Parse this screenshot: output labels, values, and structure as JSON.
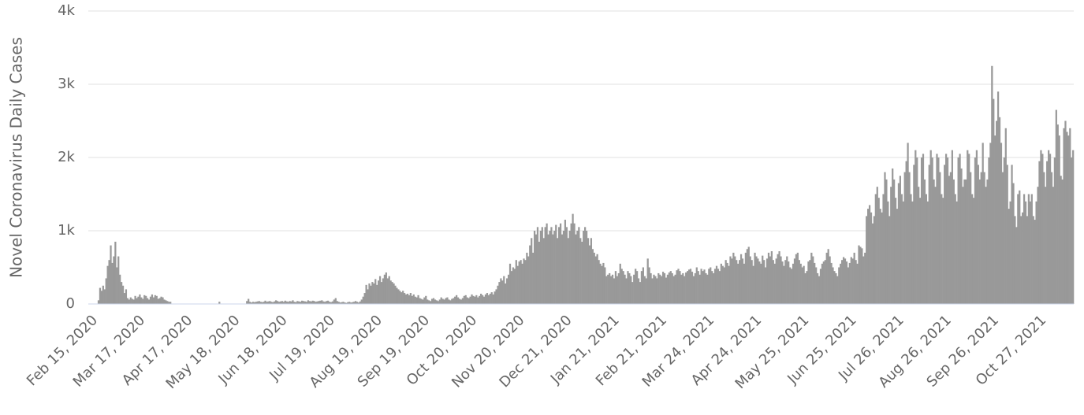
{
  "chart_data": {
    "type": "bar",
    "y_axis_label": "Novel Coronavirus Daily Cases",
    "color": "#999999",
    "grid": true,
    "ylim": [
      0,
      4000
    ],
    "yticks": [
      0,
      {
        "value": 1000,
        "label": "1k"
      },
      {
        "value": 2000,
        "label": "2k"
      },
      {
        "value": 3000,
        "label": "3k"
      },
      {
        "value": 4000,
        "label": "4k"
      }
    ],
    "categories": [
      "Feb 15, 2020",
      null,
      null,
      null,
      null,
      null,
      null,
      null,
      null,
      null,
      null,
      null,
      null,
      null,
      null,
      null,
      null,
      null,
      null,
      null,
      null,
      null,
      null,
      null,
      null,
      null,
      null,
      null,
      null,
      null,
      null,
      "Mar 17, 2020",
      null,
      null,
      null,
      null,
      null,
      null,
      null,
      null,
      null,
      null,
      null,
      null,
      null,
      null,
      null,
      null,
      null,
      null,
      null,
      null,
      null,
      null,
      null,
      null,
      null,
      null,
      null,
      null,
      null,
      null,
      "Apr 17, 2020",
      null,
      null,
      null,
      null,
      null,
      null,
      null,
      null,
      null,
      null,
      null,
      null,
      null,
      null,
      null,
      null,
      null,
      null,
      null,
      null,
      null,
      null,
      null,
      null,
      null,
      null,
      null,
      null,
      null,
      null,
      "May 18, 2020",
      null,
      null,
      null,
      null,
      null,
      null,
      null,
      null,
      null,
      null,
      null,
      null,
      null,
      null,
      null,
      null,
      null,
      null,
      null,
      null,
      null,
      null,
      null,
      null,
      null,
      null,
      null,
      null,
      null,
      null,
      "Jun 18, 2020",
      null,
      null,
      null,
      null,
      null,
      null,
      null,
      null,
      null,
      null,
      null,
      null,
      null,
      null,
      null,
      null,
      null,
      null,
      null,
      null,
      null,
      null,
      null,
      null,
      null,
      null,
      null,
      null,
      null,
      null,
      "Jul 19, 2020",
      null,
      null,
      null,
      null,
      null,
      null,
      null,
      null,
      null,
      null,
      null,
      null,
      null,
      null,
      null,
      null,
      null,
      null,
      null,
      null,
      null,
      null,
      null,
      null,
      null,
      null,
      null,
      null,
      null,
      null,
      "Aug 19, 2020",
      null,
      null,
      null,
      null,
      null,
      null,
      null,
      null,
      null,
      null,
      null,
      null,
      null,
      null,
      null,
      null,
      null,
      null,
      null,
      null,
      null,
      null,
      null,
      null,
      null,
      null,
      null,
      null,
      null,
      null,
      "Sep 19, 2020",
      null,
      null,
      null,
      null,
      null,
      null,
      null,
      null,
      null,
      null,
      null,
      null,
      null,
      null,
      null,
      null,
      null,
      null,
      null,
      null,
      null,
      null,
      null,
      null,
      null,
      null,
      null,
      null,
      null,
      null,
      "Oct 20, 2020",
      null,
      null,
      null,
      null,
      null,
      null,
      null,
      null,
      null,
      null,
      null,
      null,
      null,
      null,
      null,
      null,
      null,
      null,
      null,
      null,
      null,
      null,
      null,
      null,
      null,
      null,
      null,
      null,
      null,
      null,
      "Nov 20, 2020",
      null,
      null,
      null,
      null,
      null,
      null,
      null,
      null,
      null,
      null,
      null,
      null,
      null,
      null,
      null,
      null,
      null,
      null,
      null,
      null,
      null,
      null,
      null,
      null,
      null,
      null,
      null,
      null,
      null,
      null,
      "Dec 21, 2020",
      null,
      null,
      null,
      null,
      null,
      null,
      null,
      null,
      null,
      null,
      null,
      null,
      null,
      null,
      null,
      null,
      null,
      null,
      null,
      null,
      null,
      null,
      null,
      null,
      null,
      null,
      null,
      null,
      null,
      null,
      "Jan 21, 2021",
      null,
      null,
      null,
      null,
      null,
      null,
      null,
      null,
      null,
      null,
      null,
      null,
      null,
      null,
      null,
      null,
      null,
      null,
      null,
      null,
      null,
      null,
      null,
      null,
      null,
      null,
      null,
      null,
      null,
      null,
      "Feb 21, 2021",
      null,
      null,
      null,
      null,
      null,
      null,
      null,
      null,
      null,
      null,
      null,
      null,
      null,
      null,
      null,
      null,
      null,
      null,
      null,
      null,
      null,
      null,
      null,
      null,
      null,
      null,
      null,
      null,
      null,
      null,
      "Mar 24, 2021",
      null,
      null,
      null,
      null,
      null,
      null,
      null,
      null,
      null,
      null,
      null,
      null,
      null,
      null,
      null,
      null,
      null,
      null,
      null,
      null,
      null,
      null,
      null,
      null,
      null,
      null,
      null,
      null,
      null,
      null,
      "Apr 24, 2021",
      null,
      null,
      null,
      null,
      null,
      null,
      null,
      null,
      null,
      null,
      null,
      null,
      null,
      null,
      null,
      null,
      null,
      null,
      null,
      null,
      null,
      null,
      null,
      null,
      null,
      null,
      null,
      null,
      null,
      null,
      "May 25, 2021",
      null,
      null,
      null,
      null,
      null,
      null,
      null,
      null,
      null,
      null,
      null,
      null,
      null,
      null,
      null,
      null,
      null,
      null,
      null,
      null,
      null,
      null,
      null,
      null,
      null,
      null,
      null,
      null,
      null,
      null,
      "Jun 25, 2021",
      null,
      null,
      null,
      null,
      null,
      null,
      null,
      null,
      null,
      null,
      null,
      null,
      null,
      null,
      null,
      null,
      null,
      null,
      null,
      null,
      null,
      null,
      null,
      null,
      null,
      null,
      null,
      null,
      null,
      null,
      "Jul 26, 2021",
      null,
      null,
      null,
      null,
      null,
      null,
      null,
      null,
      null,
      null,
      null,
      null,
      null,
      null,
      null,
      null,
      null,
      null,
      null,
      null,
      null,
      null,
      null,
      null,
      null,
      null,
      null,
      null,
      null,
      null,
      "Aug 26, 2021",
      null,
      null,
      null,
      null,
      null,
      null,
      null,
      null,
      null,
      null,
      null,
      null,
      null,
      null,
      null,
      null,
      null,
      null,
      null,
      null,
      null,
      null,
      null,
      null,
      null,
      null,
      null,
      null,
      null,
      null,
      "Sep 26, 2021",
      null,
      null,
      null,
      null,
      null,
      null,
      null,
      null,
      null,
      null,
      null,
      null,
      null,
      null,
      null,
      null,
      null,
      null,
      null,
      null,
      null,
      null,
      null,
      null,
      null,
      null,
      null,
      null,
      null,
      null,
      "Oct 27, 2021",
      null,
      null,
      null,
      null,
      null,
      null,
      null,
      null,
      null,
      null,
      null,
      null,
      null,
      null,
      null,
      null,
      null,
      null,
      null
    ],
    "values": [
      0,
      0,
      50,
      220,
      180,
      250,
      200,
      350,
      520,
      600,
      800,
      560,
      650,
      850,
      500,
      650,
      400,
      300,
      250,
      150,
      200,
      80,
      60,
      90,
      70,
      60,
      110,
      80,
      100,
      130,
      90,
      70,
      120,
      110,
      80,
      60,
      100,
      130,
      90,
      120,
      110,
      70,
      80,
      100,
      90,
      60,
      50,
      40,
      30,
      30,
      0,
      0,
      0,
      0,
      0,
      0,
      0,
      0,
      0,
      0,
      0,
      0,
      0,
      0,
      0,
      0,
      0,
      0,
      0,
      0,
      0,
      0,
      0,
      0,
      0,
      0,
      0,
      0,
      0,
      0,
      0,
      30,
      0,
      0,
      0,
      0,
      0,
      0,
      0,
      0,
      0,
      0,
      0,
      0,
      0,
      0,
      0,
      0,
      0,
      40,
      70,
      30,
      20,
      30,
      25,
      30,
      35,
      40,
      30,
      25,
      30,
      45,
      30,
      35,
      40,
      30,
      25,
      35,
      50,
      40,
      30,
      35,
      40,
      30,
      45,
      35,
      30,
      40,
      35,
      50,
      30,
      25,
      40,
      35,
      30,
      45,
      40,
      35,
      30,
      50,
      40,
      35,
      45,
      40,
      30,
      35,
      40,
      45,
      50,
      35,
      30,
      40,
      45,
      30,
      25,
      35,
      60,
      80,
      40,
      30,
      20,
      25,
      30,
      20,
      15,
      25,
      30,
      20,
      25,
      30,
      40,
      30,
      20,
      35,
      60,
      100,
      150,
      260,
      200,
      280,
      250,
      300,
      280,
      340,
      260,
      320,
      380,
      300,
      350,
      400,
      430,
      350,
      380,
      320,
      300,
      280,
      250,
      220,
      200,
      180,
      160,
      180,
      150,
      130,
      140,
      120,
      150,
      110,
      130,
      100,
      90,
      120,
      80,
      70,
      60,
      90,
      110,
      60,
      50,
      40,
      70,
      80,
      60,
      50,
      40,
      60,
      90,
      70,
      60,
      80,
      90,
      60,
      50,
      70,
      80,
      100,
      120,
      90,
      70,
      60,
      80,
      110,
      120,
      90,
      80,
      100,
      130,
      110,
      100,
      120,
      90,
      110,
      140,
      120,
      100,
      130,
      150,
      120,
      140,
      160,
      130,
      170,
      200,
      250,
      300,
      350,
      320,
      380,
      280,
      350,
      400,
      550,
      450,
      500,
      480,
      600,
      520,
      580,
      600,
      550,
      620,
      600,
      700,
      650,
      800,
      900,
      700,
      1000,
      950,
      1050,
      850,
      1000,
      1050,
      900,
      1050,
      1100,
      950,
      1000,
      1050,
      950,
      1000,
      1080,
      900,
      1050,
      1100,
      950,
      1000,
      1150,
      1050,
      900,
      1000,
      1100,
      1230,
      1100,
      950,
      1000,
      1050,
      900,
      850,
      1000,
      1050,
      1000,
      900,
      800,
      900,
      750,
      700,
      650,
      680,
      600,
      550,
      520,
      560,
      500,
      380,
      400,
      420,
      380,
      400,
      350,
      450,
      380,
      420,
      550,
      480,
      450,
      400,
      350,
      450,
      420,
      380,
      300,
      400,
      480,
      450,
      350,
      300,
      450,
      500,
      380,
      350,
      620,
      500,
      420,
      350,
      400,
      380,
      350,
      420,
      400,
      380,
      440,
      420,
      360,
      400,
      430,
      450,
      420,
      380,
      400,
      460,
      480,
      450,
      400,
      420,
      380,
      430,
      450,
      470,
      480,
      440,
      380,
      420,
      500,
      450,
      400,
      480,
      450,
      470,
      420,
      400,
      480,
      500,
      450,
      420,
      480,
      520,
      480,
      450,
      550,
      520,
      500,
      600,
      560,
      520,
      650,
      620,
      700,
      650,
      600,
      550,
      600,
      680,
      620,
      550,
      700,
      750,
      780,
      650,
      600,
      520,
      700,
      650,
      620,
      580,
      550,
      660,
      600,
      500,
      620,
      700,
      650,
      720,
      600,
      550,
      620,
      680,
      720,
      650,
      580,
      520,
      600,
      650,
      580,
      500,
      480,
      550,
      620,
      680,
      700,
      600,
      550,
      500,
      520,
      420,
      450,
      580,
      600,
      700,
      650,
      560,
      500,
      420,
      380,
      480,
      550,
      580,
      600,
      700,
      750,
      650,
      560,
      500,
      450,
      420,
      380,
      500,
      550,
      600,
      640,
      620,
      580,
      500,
      560,
      640,
      620,
      700,
      600,
      550,
      800,
      780,
      760,
      650,
      700,
      1200,
      1300,
      1350,
      1250,
      1100,
      1200,
      1500,
      1600,
      1450,
      1300,
      1250,
      1500,
      1800,
      1700,
      1400,
      1200,
      1600,
      1850,
      1700,
      1450,
      1300,
      1650,
      1750,
      1500,
      1400,
      1800,
      1950,
      2200,
      1800,
      1500,
      1400,
      1900,
      2100,
      2000,
      1600,
      1450,
      2000,
      2050,
      1700,
      1500,
      1400,
      1900,
      2100,
      2000,
      1700,
      1600,
      2050,
      2000,
      1800,
      1500,
      1450,
      1900,
      2050,
      2000,
      1750,
      1800,
      2100,
      1700,
      1500,
      1400,
      2000,
      2050,
      1850,
      1600,
      1700,
      1700,
      2100,
      2050,
      1800,
      1500,
      1450,
      2000,
      2100,
      1900,
      1700,
      1800,
      2200,
      1800,
      1600,
      1700,
      2000,
      2200,
      3250,
      2800,
      2300,
      2500,
      2900,
      2550,
      2200,
      1800,
      2000,
      2400,
      1900,
      1300,
      1400,
      1900,
      1650,
      1200,
      1050,
      1500,
      1550,
      1200,
      1250,
      1500,
      1400,
      1200,
      1500,
      1400,
      1500,
      1200,
      1150,
      1400,
      1600,
      1950,
      2100,
      2050,
      1800,
      1600,
      1950,
      2100,
      2050,
      1800,
      1600,
      2000,
      2650,
      2450,
      2300,
      1750,
      1700,
      2400,
      2500,
      2350,
      2300,
      2400,
      2000,
      2100
    ]
  }
}
